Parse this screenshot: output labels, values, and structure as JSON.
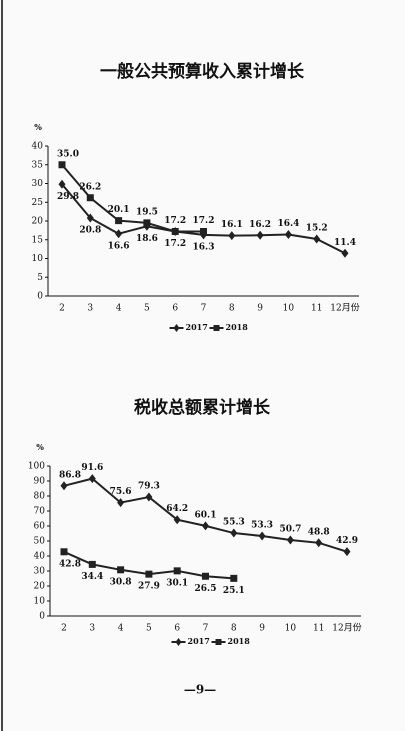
{
  "chart_data": [
    {
      "type": "line",
      "title": "一般公共预算收入累计增长",
      "y_label": "%",
      "categories": [
        "2",
        "3",
        "4",
        "5",
        "6",
        "7",
        "8",
        "9",
        "10",
        "11",
        "12月份"
      ],
      "ylim": [
        0,
        40
      ],
      "yticks": [
        0,
        5,
        10,
        15,
        20,
        25,
        30,
        35,
        40
      ],
      "series": [
        {
          "name": "2017",
          "color": "#222222",
          "marker": "diamond",
          "values": [
            29.8,
            20.8,
            16.6,
            18.6,
            17.2,
            16.3,
            16.1,
            16.2,
            16.4,
            15.2,
            11.4
          ],
          "value_labels": [
            "29.8",
            "20.8",
            "16.6",
            "18.6",
            "17.2",
            "16.3",
            "16.1",
            "16.2",
            "16.4",
            "15.2",
            "11.4"
          ]
        },
        {
          "name": "2018",
          "color": "#222222",
          "marker": "square",
          "values": [
            35.0,
            26.2,
            20.1,
            19.5,
            17.2,
            17.2,
            null,
            null,
            null,
            null,
            null
          ],
          "value_labels": [
            "35.0",
            "26.2",
            "20.1",
            "19.5",
            "17.2",
            "17.2",
            null,
            null,
            null,
            null,
            null
          ]
        }
      ]
    },
    {
      "type": "line",
      "title": "税收总额累计增长",
      "y_label": "%",
      "categories": [
        "2",
        "3",
        "4",
        "5",
        "6",
        "7",
        "8",
        "9",
        "10",
        "11",
        "12月份"
      ],
      "ylim": [
        0,
        100
      ],
      "yticks": [
        0,
        10,
        20,
        30,
        40,
        50,
        60,
        70,
        80,
        90,
        100
      ],
      "series": [
        {
          "name": "2017",
          "color": "#222222",
          "marker": "diamond",
          "values": [
            86.8,
            91.6,
            75.6,
            79.3,
            64.2,
            60.1,
            55.3,
            53.3,
            50.7,
            48.8,
            42.9
          ],
          "value_labels": [
            "86.8",
            "91.6",
            "75.6",
            "79.3",
            "64.2",
            "60.1",
            "55.3",
            "53.3",
            "50.7",
            "48.8",
            "42.9"
          ]
        },
        {
          "name": "2018",
          "color": "#222222",
          "marker": "square",
          "values": [
            42.8,
            34.4,
            30.8,
            27.9,
            30.1,
            26.5,
            25.1,
            null,
            null,
            null,
            null
          ],
          "value_labels": [
            "42.8",
            "34.4",
            "30.8",
            "27.9",
            "30.1",
            "26.5",
            "25.1",
            null,
            null,
            null,
            null
          ]
        }
      ]
    }
  ],
  "page_number": "—9—"
}
